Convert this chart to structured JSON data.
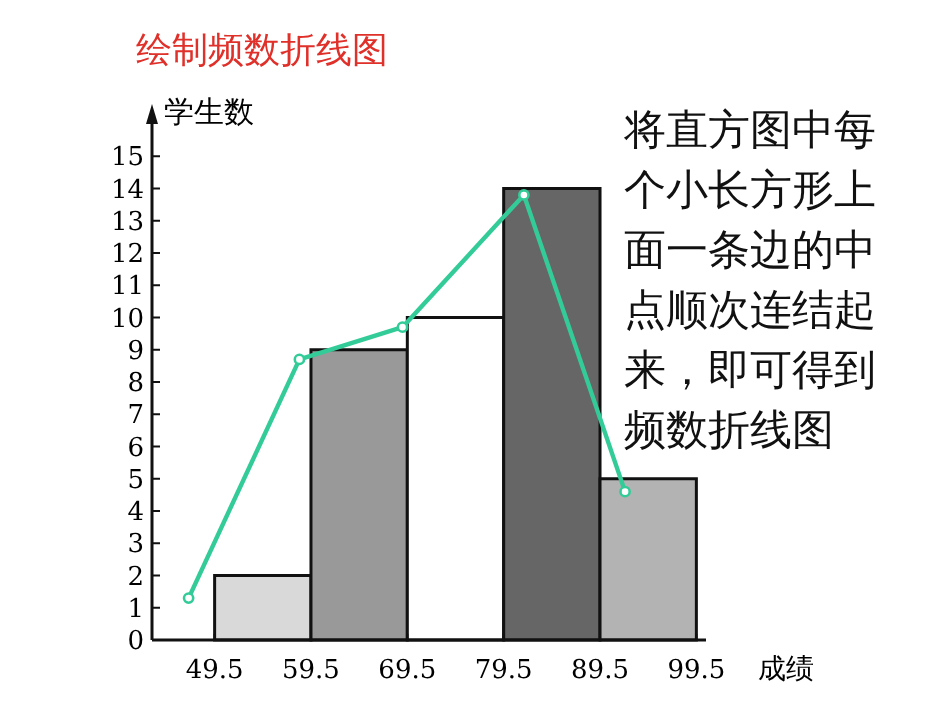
{
  "chart_data": {
    "type": "histogram",
    "title": "绘制频数折线图",
    "ylabel": "学生数",
    "xlabel": "成绩",
    "bins": [
      49.5,
      59.5,
      69.5,
      79.5,
      89.5,
      99.5
    ],
    "values": [
      2,
      9,
      10,
      14,
      5
    ],
    "colors": [
      "#d9d9d9",
      "#999999",
      "#ffffff",
      "#666666",
      "#b3b3b3"
    ],
    "series": [
      {
        "type": "line",
        "x": [
          46.8,
          58.3,
          69.0,
          81.6,
          92.1
        ],
        "values": [
          1.3,
          8.7,
          9.7,
          13.8,
          4.6
        ],
        "color": "#33cc99",
        "marker": "circle"
      }
    ],
    "xlim": [
      43,
      100.5
    ],
    "ylim": [
      0,
      16
    ],
    "xticks": [
      49.5,
      59.5,
      69.5,
      79.5,
      89.5,
      99.5
    ],
    "yticks": [
      0,
      1,
      2,
      3,
      4,
      5,
      6,
      7,
      8,
      9,
      10,
      11,
      12,
      13,
      14,
      15
    ],
    "annotations": [
      "将直方图中每个小长方形上面一条边的中点顺次连结起来，即可得到频数折线图"
    ],
    "grid": false
  }
}
